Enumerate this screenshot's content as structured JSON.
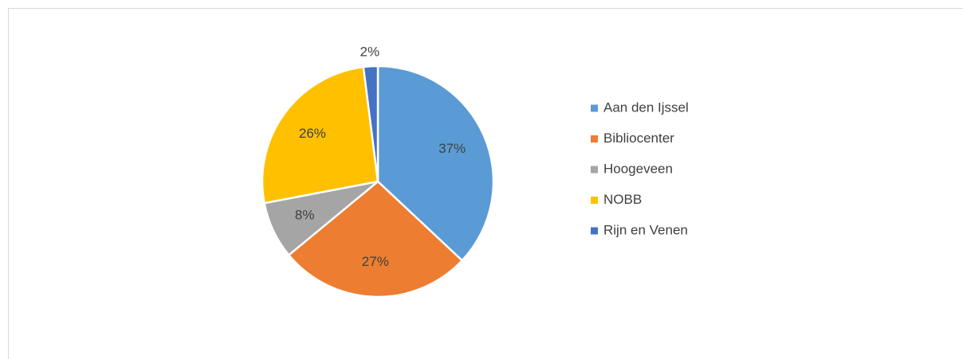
{
  "chart_data": {
    "type": "pie",
    "categories": [
      "Aan den Ijssel",
      "Bibliocenter",
      "Hoogeveen",
      "NOBB",
      "Rijn en Venen"
    ],
    "values": [
      37,
      27,
      8,
      26,
      2
    ],
    "value_labels": [
      "37%",
      "27%",
      "8%",
      "26%",
      "2%"
    ],
    "colors": [
      "#5b9bd5",
      "#ed7d31",
      "#a5a5a5",
      "#ffc000",
      "#4472c4"
    ],
    "legend": "right"
  }
}
